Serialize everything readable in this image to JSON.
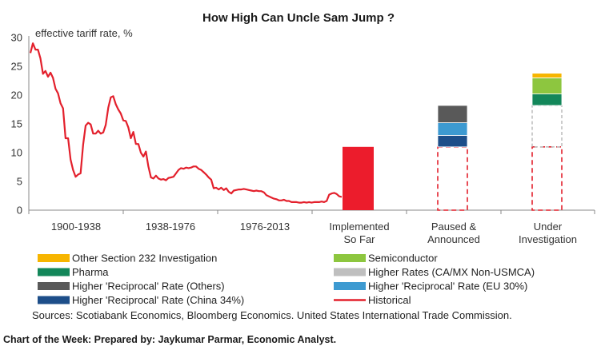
{
  "chart_data": {
    "type": "line",
    "title": "How High Can Uncle Sam Jump ?",
    "ylabel": "effective tariff rate, %",
    "ylim": [
      0,
      30
    ],
    "yticks": [
      "0",
      "5",
      "10",
      "15",
      "20",
      "25",
      "30"
    ],
    "x_groups": [
      {
        "label": [
          "1900-1938"
        ]
      },
      {
        "label": [
          "1938-1976"
        ]
      },
      {
        "label": [
          "1976-2013"
        ]
      },
      {
        "label": [
          "Implemented",
          "So Far"
        ]
      },
      {
        "label": [
          "Paused &",
          "Announced"
        ]
      },
      {
        "label": [
          "Under",
          "Investigation"
        ]
      }
    ],
    "historical": {
      "name": "Historical",
      "color": "#e3202c",
      "x_range": [
        1900,
        2024
      ],
      "points": [
        [
          1900,
          27.3
        ],
        [
          1901,
          29.0
        ],
        [
          1902,
          27.9
        ],
        [
          1903,
          27.9
        ],
        [
          1904,
          26.4
        ],
        [
          1905,
          23.7
        ],
        [
          1906,
          24.2
        ],
        [
          1907,
          23.2
        ],
        [
          1908,
          23.9
        ],
        [
          1909,
          23.0
        ],
        [
          1910,
          21.1
        ],
        [
          1911,
          20.3
        ],
        [
          1912,
          18.6
        ],
        [
          1913,
          17.7
        ],
        [
          1914,
          12.5
        ],
        [
          1915,
          12.5
        ],
        [
          1916,
          8.8
        ],
        [
          1917,
          7.0
        ],
        [
          1918,
          5.8
        ],
        [
          1919,
          6.2
        ],
        [
          1920,
          6.4
        ],
        [
          1921,
          11.4
        ],
        [
          1922,
          14.7
        ],
        [
          1923,
          15.2
        ],
        [
          1924,
          14.9
        ],
        [
          1925,
          13.3
        ],
        [
          1926,
          13.3
        ],
        [
          1927,
          13.8
        ],
        [
          1928,
          13.3
        ],
        [
          1929,
          13.5
        ],
        [
          1930,
          14.8
        ],
        [
          1931,
          17.8
        ],
        [
          1932,
          19.6
        ],
        [
          1933,
          19.8
        ],
        [
          1934,
          18.4
        ],
        [
          1935,
          17.5
        ],
        [
          1936,
          16.8
        ],
        [
          1937,
          15.6
        ],
        [
          1938,
          15.5
        ],
        [
          1939,
          14.4
        ],
        [
          1940,
          12.5
        ],
        [
          1941,
          13.6
        ],
        [
          1942,
          11.5
        ],
        [
          1943,
          11.5
        ],
        [
          1944,
          10.0
        ],
        [
          1945,
          9.3
        ],
        [
          1946,
          10.2
        ],
        [
          1947,
          7.6
        ],
        [
          1948,
          5.7
        ],
        [
          1949,
          5.5
        ],
        [
          1950,
          6.0
        ],
        [
          1951,
          5.5
        ],
        [
          1952,
          5.3
        ],
        [
          1953,
          5.4
        ],
        [
          1954,
          5.2
        ],
        [
          1955,
          5.6
        ],
        [
          1956,
          5.7
        ],
        [
          1957,
          5.8
        ],
        [
          1958,
          6.4
        ],
        [
          1959,
          7.0
        ],
        [
          1960,
          7.3
        ],
        [
          1961,
          7.2
        ],
        [
          1962,
          7.4
        ],
        [
          1963,
          7.3
        ],
        [
          1964,
          7.4
        ],
        [
          1965,
          7.6
        ],
        [
          1966,
          7.6
        ],
        [
          1967,
          7.2
        ],
        [
          1968,
          7.0
        ],
        [
          1969,
          6.6
        ],
        [
          1970,
          6.2
        ],
        [
          1971,
          5.7
        ],
        [
          1972,
          5.3
        ],
        [
          1973,
          3.8
        ],
        [
          1974,
          3.9
        ],
        [
          1975,
          3.6
        ],
        [
          1976,
          3.9
        ],
        [
          1977,
          3.5
        ],
        [
          1978,
          3.8
        ],
        [
          1979,
          3.2
        ],
        [
          1980,
          2.9
        ],
        [
          1981,
          3.4
        ],
        [
          1982,
          3.5
        ],
        [
          1983,
          3.6
        ],
        [
          1984,
          3.6
        ],
        [
          1985,
          3.7
        ],
        [
          1986,
          3.6
        ],
        [
          1987,
          3.5
        ],
        [
          1988,
          3.4
        ],
        [
          1989,
          3.3
        ],
        [
          1990,
          3.4
        ],
        [
          1991,
          3.3
        ],
        [
          1992,
          3.3
        ],
        [
          1993,
          3.1
        ],
        [
          1994,
          2.6
        ],
        [
          1995,
          2.4
        ],
        [
          1996,
          2.2
        ],
        [
          1997,
          2.0
        ],
        [
          1998,
          1.9
        ],
        [
          1999,
          1.7
        ],
        [
          2000,
          1.7
        ],
        [
          2001,
          1.8
        ],
        [
          2002,
          1.6
        ],
        [
          2003,
          1.6
        ],
        [
          2004,
          1.4
        ],
        [
          2005,
          1.4
        ],
        [
          2006,
          1.4
        ],
        [
          2007,
          1.3
        ],
        [
          2008,
          1.3
        ],
        [
          2009,
          1.4
        ],
        [
          2010,
          1.3
        ],
        [
          2011,
          1.4
        ],
        [
          2012,
          1.3
        ],
        [
          2013,
          1.4
        ],
        [
          2014,
          1.4
        ],
        [
          2015,
          1.4
        ],
        [
          2016,
          1.5
        ],
        [
          2017,
          1.4
        ],
        [
          2018,
          1.6
        ],
        [
          2019,
          2.7
        ],
        [
          2020,
          2.9
        ],
        [
          2021,
          3.0
        ],
        [
          2022,
          2.8
        ],
        [
          2023,
          2.4
        ],
        [
          2024,
          2.3
        ]
      ]
    },
    "implemented": {
      "value": 11,
      "color": "#ec1c2c"
    },
    "stacks": [
      {
        "group": "Paused & Announced",
        "base": 11,
        "segments": [
          {
            "name": "Higher 'Reciprocal' Rate (China 34%)",
            "value": 2.0
          },
          {
            "name": "Higher 'Reciprocal' Rate (EU 30%)",
            "value": 2.2
          },
          {
            "name": "Higher 'Reciprocal' Rate (Others)",
            "value": 3.0
          }
        ]
      },
      {
        "group": "Under Investigation",
        "base": 11,
        "segments": [
          {
            "name": "Higher Rates (CA/MX Non-USMCA)",
            "value": 7.2
          },
          {
            "name": "Pharma",
            "value": 2.0
          },
          {
            "name": "Semiconductor",
            "value": 2.8
          },
          {
            "name": "Other Section 232 Investigation",
            "value": 0.8
          }
        ]
      }
    ],
    "legend": [
      {
        "name": "Other Section 232 Investigation",
        "color": "#f7b500",
        "kind": "box"
      },
      {
        "name": "Semiconductor",
        "color": "#8dc63f",
        "kind": "box"
      },
      {
        "name": "Pharma",
        "color": "#13875a",
        "kind": "box"
      },
      {
        "name": "Higher Rates (CA/MX Non-USMCA)",
        "color": "#bfbfbf",
        "kind": "box"
      },
      {
        "name": "Higher 'Reciprocal' Rate (Others)",
        "color": "#595959",
        "kind": "box"
      },
      {
        "name": "Higher 'Reciprocal' Rate (EU 30%)",
        "color": "#3d9ad1",
        "kind": "box"
      },
      {
        "name": "Higher 'Reciprocal' Rate (China 34%)",
        "color": "#1d4e89",
        "kind": "box"
      },
      {
        "name": "Historical",
        "color": "#e3202c",
        "kind": "line"
      }
    ]
  },
  "source_note": "Sources: Scotiabank Economics, Bloomberg Economics. United States International Trade Commission.",
  "footer_note": "Chart of the Week: Prepared by: Jaykumar Parmar, Economic Analyst."
}
